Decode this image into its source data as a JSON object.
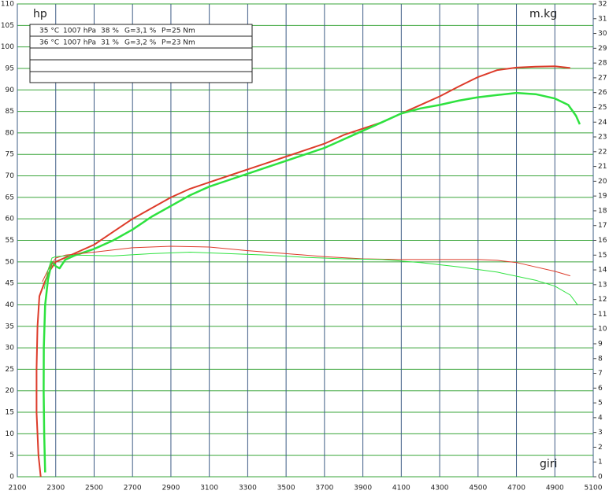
{
  "chart_data": {
    "type": "line",
    "y_label": "hp",
    "y2_label": "m.kg",
    "x_label": "giri",
    "legend_table": [
      [
        "35 °C",
        "1007 hPa",
        "38 %",
        "G=3,1 %",
        "P=25 Nm"
      ],
      [
        "36 °C",
        "1007 hPa",
        "31 %",
        "G=3,2 %",
        "P=23 Nm"
      ]
    ],
    "xlim": [
      2100,
      5100
    ],
    "xticks": [
      2100,
      2300,
      2500,
      2700,
      2900,
      3100,
      3300,
      3500,
      3700,
      3900,
      4100,
      4300,
      4500,
      4700,
      4900,
      5100
    ],
    "ylim": [
      0,
      110
    ],
    "yticks": [
      0,
      5,
      10,
      15,
      20,
      25,
      30,
      35,
      40,
      45,
      50,
      55,
      60,
      65,
      70,
      75,
      80,
      85,
      90,
      95,
      100,
      105,
      110
    ],
    "y2lim": [
      0,
      32
    ],
    "y2ticks": [
      0,
      1,
      2,
      3,
      4,
      5,
      6,
      7,
      8,
      9,
      10,
      11,
      12,
      13,
      14,
      15,
      16,
      17,
      18,
      19,
      20,
      21,
      22,
      23,
      24,
      25,
      26,
      27,
      28,
      29,
      30,
      31,
      32
    ],
    "grid": true,
    "series": [
      {
        "color": "#dd3b2a",
        "width": 2,
        "x": [
          2222,
          2210,
          2200,
          2200,
          2205,
          2215,
          2240,
          2270,
          2300,
          2350,
          2400,
          2500,
          2600,
          2700,
          2800,
          2900,
          3000,
          3100,
          3200,
          3300,
          3400,
          3500,
          3600,
          3700,
          3800,
          3900,
          4000,
          4100,
          4200,
          4300,
          4400,
          4500,
          4600,
          4700,
          4800,
          4900,
          4980
        ],
        "values": [
          0,
          5,
          15,
          25,
          35,
          42,
          45,
          48,
          50,
          51,
          52,
          54,
          57,
          60,
          62.5,
          65,
          67,
          68.5,
          70,
          71.5,
          73,
          74.5,
          76,
          77.5,
          79.5,
          81,
          82.5,
          84.5,
          86.5,
          88.5,
          90.8,
          93,
          94.6,
          95.2,
          95.4,
          95.5,
          95.1
        ]
      },
      {
        "color": "#2ee23f",
        "width": 2.5,
        "x": [
          2245,
          2240,
          2237,
          2238,
          2245,
          2260,
          2280,
          2300,
          2320,
          2350,
          2400,
          2500,
          2600,
          2700,
          2800,
          2900,
          3000,
          3100,
          3200,
          3300,
          3400,
          3500,
          3600,
          3700,
          3800,
          3900,
          4000,
          4100,
          4200,
          4300,
          4400,
          4500,
          4600,
          4700,
          4800,
          4900,
          4970,
          5010,
          5030
        ],
        "values": [
          1,
          10,
          20,
          30,
          40,
          46,
          50,
          49,
          48.5,
          50.5,
          51.5,
          53,
          55,
          57.5,
          60.5,
          63,
          65.5,
          67.5,
          69,
          70.5,
          72,
          73.5,
          75,
          76.5,
          78.5,
          80.5,
          82.5,
          84.5,
          85.7,
          86.5,
          87.5,
          88.3,
          88.8,
          89.3,
          89,
          88,
          86.5,
          84,
          82
        ]
      },
      {
        "color": "#dd3b2a",
        "width": 1,
        "axis": "y2",
        "x": [
          2230,
          2260,
          2300,
          2350,
          2500,
          2700,
          2900,
          3100,
          3300,
          3500,
          3700,
          3900,
          4100,
          4300,
          4500,
          4600,
          4700,
          4800,
          4900,
          4980
        ],
        "values": [
          13.2,
          14,
          14.8,
          15,
          15.2,
          15.5,
          15.6,
          15.55,
          15.3,
          15.1,
          14.9,
          14.75,
          14.7,
          14.7,
          14.7,
          14.65,
          14.5,
          14.2,
          13.9,
          13.6
        ]
      },
      {
        "color": "#2ee23f",
        "width": 1,
        "axis": "y2",
        "x": [
          2240,
          2260,
          2280,
          2300,
          2400,
          2600,
          2800,
          3000,
          3200,
          3400,
          3600,
          3800,
          4000,
          4200,
          4400,
          4600,
          4800,
          4900,
          4980,
          5020
        ],
        "values": [
          12.7,
          14,
          14.8,
          14.9,
          15,
          14.95,
          15.1,
          15.2,
          15.1,
          15,
          14.85,
          14.75,
          14.7,
          14.5,
          14.2,
          13.85,
          13.3,
          12.9,
          12.3,
          11.6
        ]
      }
    ]
  }
}
